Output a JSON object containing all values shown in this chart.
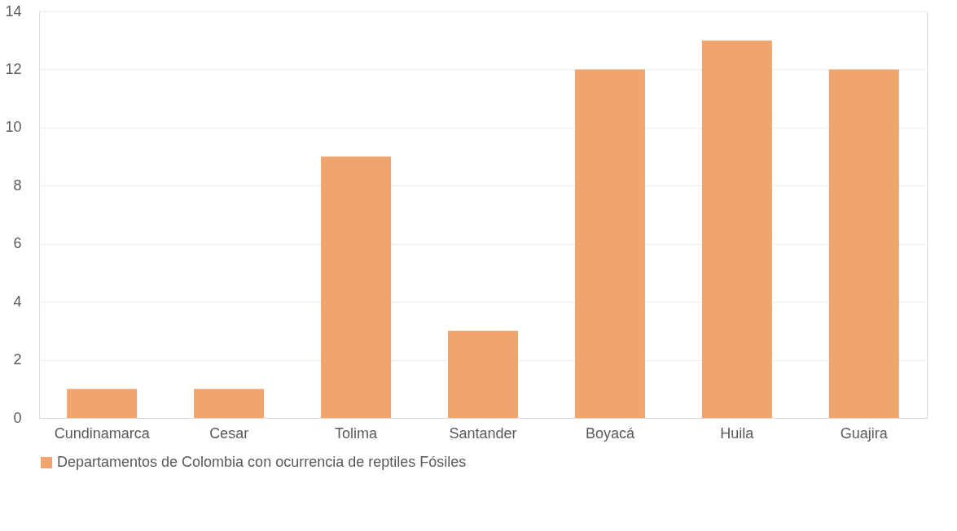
{
  "chart_data": {
    "type": "bar",
    "categories": [
      "Cundinamarca",
      "Cesar",
      "Tolima",
      "Santander",
      "Boyacá",
      "Huila",
      "Guajira"
    ],
    "series": [
      {
        "name": "Departamentos de Colombia con ocurrencia de reptiles Fósiles",
        "color": "#f0a46e",
        "values": [
          1,
          1,
          9,
          3,
          12,
          13,
          12
        ]
      }
    ],
    "ylim": [
      0,
      14
    ],
    "yticks": [
      0,
      2,
      4,
      6,
      8,
      10,
      12,
      14
    ],
    "grid": "y",
    "legend": "bottom"
  }
}
